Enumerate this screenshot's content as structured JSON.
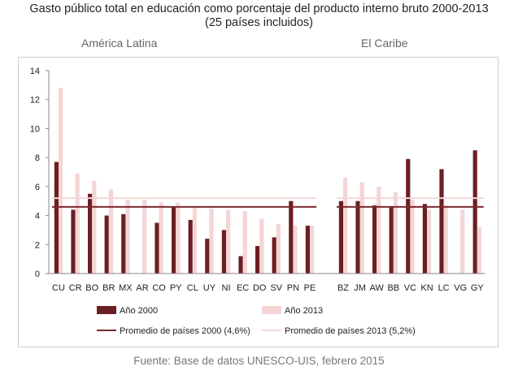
{
  "title_line1": "Gasto público total en educación como porcentaje del producto interno bruto 2000-2013",
  "title_line2": "(25 países incluidos)",
  "source": "Fuente: Base de datos UNESCO-UIS, febrero 2015",
  "colors": {
    "y2000": "#6b1f22",
    "y2013": "#f4d6d6",
    "avg2000": "#7a2a2c",
    "avg2013": "#f4d6d6"
  },
  "chart_data": {
    "type": "bar",
    "groups": [
      {
        "name": "América Latina",
        "categories": [
          "CU",
          "CR",
          "BO",
          "BR",
          "MX",
          "AR",
          "CO",
          "PY",
          "CL",
          "UY",
          "NI",
          "EC",
          "DO",
          "SV",
          "PN",
          "PE"
        ]
      },
      {
        "name": "El Caribe",
        "categories": [
          "BZ",
          "JM",
          "AW",
          "BB",
          "VC",
          "KN",
          "LC",
          "VG",
          "GY"
        ]
      }
    ],
    "categories": [
      "CU",
      "CR",
      "BO",
      "BR",
      "MX",
      "AR",
      "CO",
      "PY",
      "CL",
      "UY",
      "NI",
      "EC",
      "DO",
      "SV",
      "PN",
      "PE",
      "BZ",
      "JM",
      "AW",
      "BB",
      "VC",
      "KN",
      "LC",
      "VG",
      "GY"
    ],
    "series": [
      {
        "name": "Año 2000",
        "values": [
          7.7,
          4.4,
          5.5,
          4.0,
          4.1,
          null,
          3.5,
          4.6,
          3.7,
          2.4,
          3.0,
          1.2,
          1.9,
          2.5,
          5.0,
          3.3,
          5.0,
          5.0,
          4.7,
          4.6,
          7.9,
          4.8,
          7.2,
          null,
          8.5
        ]
      },
      {
        "name": "Año 2013",
        "values": [
          12.8,
          6.9,
          6.4,
          5.8,
          5.1,
          5.1,
          4.9,
          4.9,
          4.6,
          4.5,
          4.4,
          4.3,
          3.8,
          3.4,
          3.3,
          3.3,
          6.6,
          6.3,
          6.0,
          5.6,
          5.1,
          4.4,
          4.7,
          4.4,
          3.2
        ]
      }
    ],
    "averages": [
      {
        "name": "Promedio de países 2000 (4,6%)",
        "value": 4.6
      },
      {
        "name": "Promedio de países 2013 (5,2%)",
        "value": 5.2
      }
    ],
    "ylim": [
      0,
      14
    ],
    "yticks": [
      0,
      2,
      4,
      6,
      8,
      10,
      12,
      14
    ],
    "grid": false,
    "legend": "bottom"
  }
}
